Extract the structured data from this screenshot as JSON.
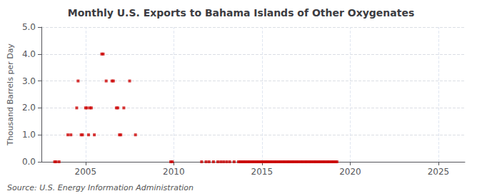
{
  "chart_data": {
    "type": "scatter",
    "title": "Monthly U.S. Exports to Bahama Islands of Other Oxygenates",
    "ylabel": "Thousand Barrels per Day",
    "annotation": "Source: U.S. Energy Information Administration",
    "color": "#cc0000",
    "marker": "square",
    "grid": true,
    "xlim": [
      2002.5,
      2026.5
    ],
    "ylim": [
      0.0,
      5.0
    ],
    "xticks": [
      2005,
      2010,
      2015,
      2020,
      2025
    ],
    "yticks": [
      {
        "value": 0.0,
        "label": "0.0"
      },
      {
        "value": 1.0,
        "label": "1.0"
      },
      {
        "value": 2.0,
        "label": "2.0"
      },
      {
        "value": 3.0,
        "label": "3.0"
      },
      {
        "value": 4.0,
        "label": "4.0"
      },
      {
        "value": 5.0,
        "label": "5.0"
      }
    ],
    "x": [
      2003.25,
      2003.33,
      2003.5,
      2004.0,
      2004.17,
      2004.5,
      2004.58,
      2004.75,
      2004.83,
      2005.0,
      2005.08,
      2005.17,
      2005.25,
      2005.33,
      2005.5,
      2005.92,
      2006.0,
      2006.17,
      2006.5,
      2006.58,
      2006.75,
      2006.83,
      2006.92,
      2007.0,
      2007.17,
      2007.5,
      2007.83,
      2009.83,
      2009.92,
      2011.58,
      2011.83,
      2012.0,
      2012.25,
      2012.5,
      2012.67,
      2012.83,
      2013.0,
      2013.17,
      2013.42,
      2013.67,
      2013.75,
      2013.83,
      2013.92,
      2014.0,
      2014.08,
      2014.17,
      2014.25,
      2014.33,
      2014.42,
      2014.5,
      2014.58,
      2014.67,
      2014.75,
      2014.83,
      2014.92,
      2015.0,
      2015.08,
      2015.17,
      2015.25,
      2015.33,
      2015.42,
      2015.5,
      2015.58,
      2015.67,
      2015.75,
      2015.83,
      2015.92,
      2016.0,
      2016.08,
      2016.17,
      2016.25,
      2016.33,
      2016.42,
      2016.5,
      2016.58,
      2016.67,
      2016.75,
      2016.83,
      2016.92,
      2017.0,
      2017.08,
      2017.17,
      2017.25,
      2017.33,
      2017.42,
      2017.5,
      2017.58,
      2017.67,
      2017.75,
      2017.83,
      2017.92,
      2018.0,
      2018.08,
      2018.17,
      2018.25,
      2018.33,
      2018.42,
      2018.5,
      2018.58,
      2018.67,
      2018.75,
      2018.83,
      2018.92,
      2019.0,
      2019.08,
      2019.17,
      2019.25
    ],
    "values": [
      0.0,
      0.0,
      0.0,
      1.0,
      1.0,
      2.0,
      3.0,
      1.0,
      1.0,
      2.0,
      2.0,
      1.0,
      2.0,
      2.0,
      1.0,
      4.0,
      4.0,
      3.0,
      3.0,
      3.0,
      2.0,
      2.0,
      1.0,
      1.0,
      2.0,
      3.0,
      1.0,
      0.0,
      0.0,
      0.0,
      0.0,
      0.0,
      0.0,
      0.0,
      0.0,
      0.0,
      0.0,
      0.0,
      0.0,
      0.0,
      0.0,
      0.0,
      0.0,
      0.0,
      0.0,
      0.0,
      0.0,
      0.0,
      0.0,
      0.0,
      0.0,
      0.0,
      0.0,
      0.0,
      0.0,
      0.0,
      0.0,
      0.0,
      0.0,
      0.0,
      0.0,
      0.0,
      0.0,
      0.0,
      0.0,
      0.0,
      0.0,
      0.0,
      0.0,
      0.0,
      0.0,
      0.0,
      0.0,
      0.0,
      0.0,
      0.0,
      0.0,
      0.0,
      0.0,
      0.0,
      0.0,
      0.0,
      0.0,
      0.0,
      0.0,
      0.0,
      0.0,
      0.0,
      0.0,
      0.0,
      0.0,
      0.0,
      0.0,
      0.0,
      0.0,
      0.0,
      0.0,
      0.0,
      0.0,
      0.0,
      0.0,
      0.0,
      0.0,
      0.0,
      0.0,
      0.0,
      0.0
    ]
  }
}
